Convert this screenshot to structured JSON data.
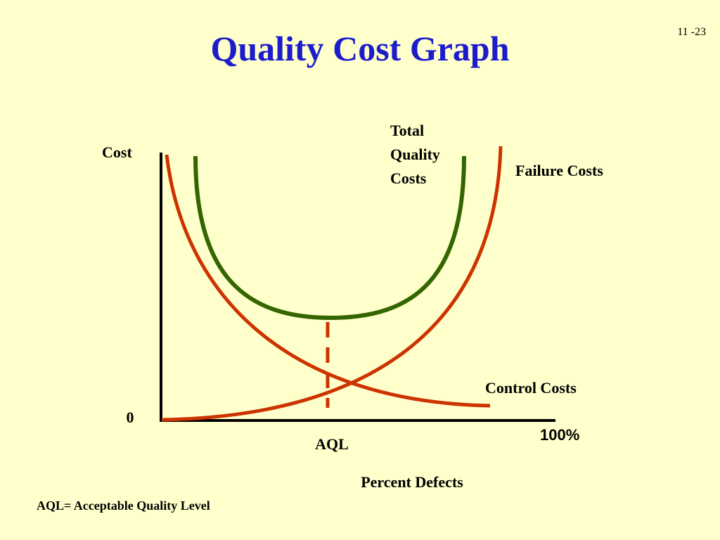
{
  "header": {
    "title": "Quality Cost Graph",
    "slide_number": "11 -23"
  },
  "diagram": {
    "y_axis_label": "Cost",
    "origin_label": "0",
    "x_end_label": "100%",
    "x_marker_label": "AQL",
    "x_axis_label": "Percent Defects",
    "total_label": [
      "Total",
      "Quality",
      "Costs"
    ],
    "failure_label": "Failure Costs",
    "control_label": "Control Costs"
  },
  "footnote": "AQL= Acceptable Quality Level"
}
